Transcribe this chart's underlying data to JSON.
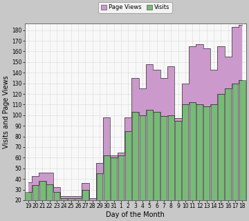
{
  "days": [
    "19",
    "20",
    "21",
    "22",
    "23",
    "24",
    "25",
    "26",
    "27",
    "28",
    "29",
    "30",
    "31",
    "1",
    "2",
    "3",
    "4",
    "5",
    "6",
    "7",
    "8",
    "9",
    "10",
    "11",
    "12",
    "13",
    "14",
    "15",
    "16",
    "17",
    "18"
  ],
  "page_views": [
    37,
    43,
    46,
    46,
    32,
    24,
    24,
    24,
    36,
    22,
    55,
    98,
    62,
    65,
    98,
    135,
    125,
    148,
    143,
    135,
    146,
    97,
    130,
    165,
    167,
    163,
    143,
    165,
    155,
    183,
    185
  ],
  "visits": [
    28,
    34,
    38,
    35,
    28,
    22,
    22,
    22,
    30,
    18,
    45,
    62,
    60,
    62,
    85,
    103,
    100,
    105,
    103,
    99,
    100,
    95,
    110,
    112,
    110,
    108,
    110,
    120,
    125,
    130,
    133
  ],
  "page_views_color": "#cc99cc",
  "visits_color": "#77bb77",
  "bar_edge_color": "#444444",
  "figure_bg": "#c8c8c8",
  "plot_bg": "#f8f8f8",
  "ylabel": "Visits and Page Views",
  "xlabel": "Day of the Month",
  "ylim_min": 20,
  "ylim_max": 183,
  "yticks": [
    20,
    30,
    40,
    50,
    60,
    70,
    80,
    90,
    100,
    110,
    120,
    130,
    140,
    150,
    160,
    170,
    180
  ],
  "legend_labels": [
    "Page Views",
    "Visits"
  ],
  "axis_fontsize": 7,
  "tick_fontsize": 5.5
}
